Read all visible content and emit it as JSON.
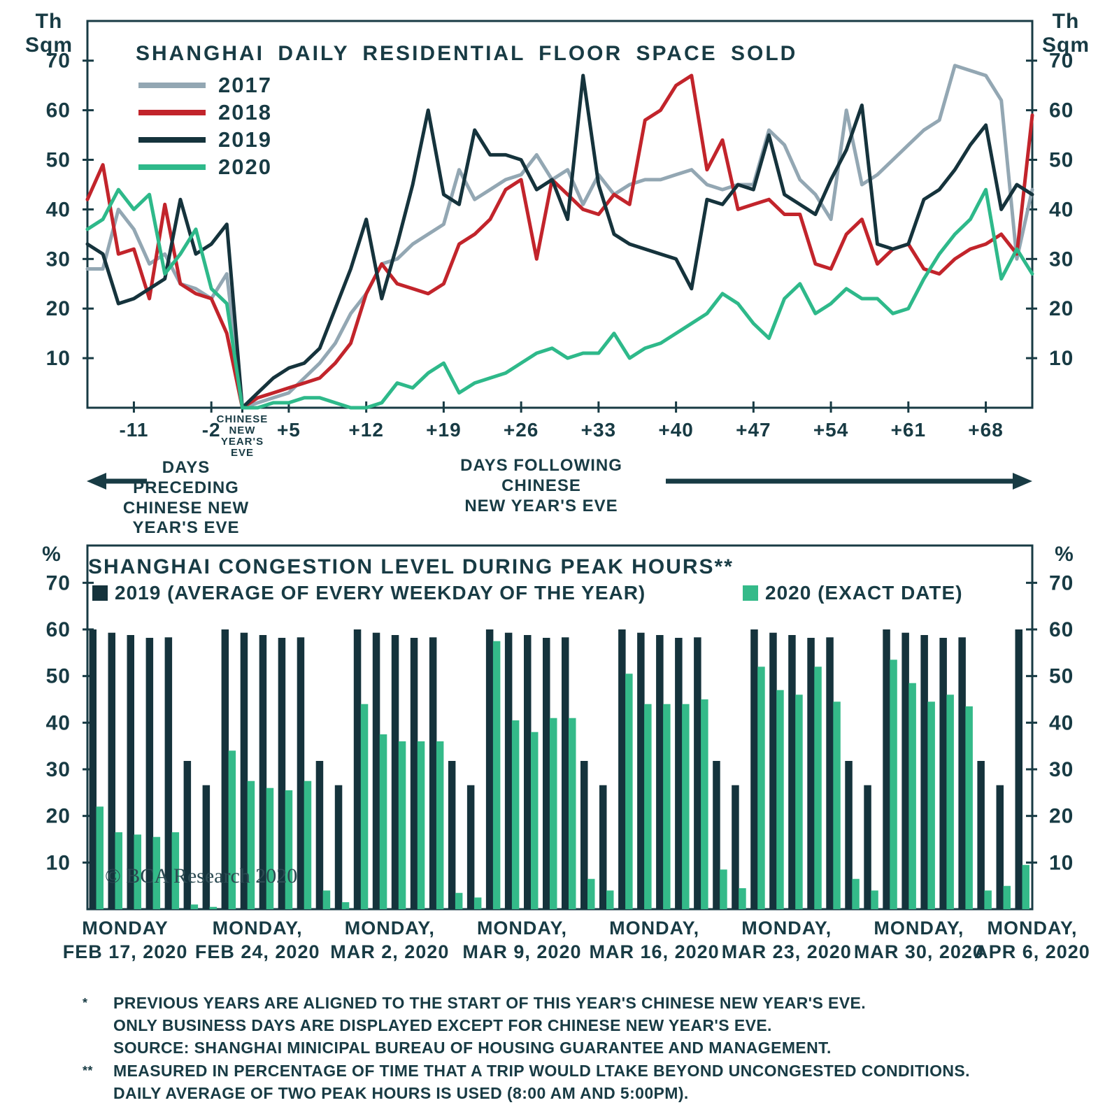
{
  "accent_colors": {
    "ink": "#183b44",
    "background": "#ffffff"
  },
  "top_chart": {
    "unit": "Th\nSqm",
    "preceding_label": "DAYS\nPRECEDING\nCHINESE NEW\nYEAR'S EVE",
    "following_label": "DAYS FOLLOWING\nCHINESE\nNEW YEAR'S EVE"
  },
  "bottom_chart": {
    "unit": "%",
    "copyright": "© BCA Research 2020"
  },
  "chart_data": [
    {
      "type": "line",
      "title": "SHANGHAI DAILY RESIDENTIAL FLOOR SPACE SOLD",
      "y_unit": "Th Sqm",
      "ylim": [
        0,
        78
      ],
      "yticks": [
        10,
        20,
        30,
        40,
        50,
        60,
        70
      ],
      "x_description": "Business days aligned to the start of this year's Chinese New Year's Eve",
      "xticks": [
        {
          "i": 3,
          "label": "-11"
        },
        {
          "i": 8,
          "label": "-2"
        },
        {
          "i": 10,
          "label": "CHINESE NEW YEAR'S EVE",
          "small": true
        },
        {
          "i": 13,
          "label": "+5"
        },
        {
          "i": 18,
          "label": "+12"
        },
        {
          "i": 23,
          "label": "+19"
        },
        {
          "i": 28,
          "label": "+26"
        },
        {
          "i": 33,
          "label": "+33"
        },
        {
          "i": 38,
          "label": "+40"
        },
        {
          "i": 43,
          "label": "+47"
        },
        {
          "i": 48,
          "label": "+54"
        },
        {
          "i": 53,
          "label": "+61"
        },
        {
          "i": 58,
          "label": "+68"
        }
      ],
      "series": [
        {
          "name": "2017",
          "color": "#93a7b3",
          "values": [
            28,
            28,
            40,
            36,
            29,
            31,
            25,
            24,
            22,
            27,
            0,
            1,
            2,
            3,
            6,
            9,
            13,
            19,
            23,
            29,
            30,
            33,
            35,
            37,
            48,
            42,
            44,
            46,
            47,
            51,
            46,
            48,
            41,
            47,
            43,
            45,
            46,
            46,
            47,
            48,
            45,
            44,
            45,
            45,
            56,
            53,
            46,
            43,
            38,
            60,
            45,
            47,
            50,
            53,
            56,
            58,
            69,
            68,
            67,
            62,
            30,
            44
          ]
        },
        {
          "name": "2018",
          "color": "#c2242b",
          "values": [
            42,
            49,
            31,
            32,
            22,
            41,
            25,
            23,
            22,
            15,
            0,
            2,
            3,
            4,
            5,
            6,
            9,
            13,
            23,
            29,
            25,
            24,
            23,
            25,
            33,
            35,
            38,
            44,
            46,
            30,
            46,
            43,
            40,
            39,
            43,
            41,
            58,
            60,
            65,
            67,
            48,
            54,
            40,
            41,
            42,
            39,
            39,
            29,
            28,
            35,
            38,
            29,
            32,
            33,
            28,
            27,
            30,
            32,
            33,
            35,
            31,
            59
          ]
        },
        {
          "name": "2019",
          "color": "#15333c",
          "values": [
            33,
            31,
            21,
            22,
            24,
            26,
            42,
            31,
            33,
            37,
            0,
            3,
            6,
            8,
            9,
            12,
            20,
            28,
            38,
            22,
            33,
            45,
            60,
            43,
            41,
            56,
            51,
            51,
            50,
            44,
            46,
            38,
            67,
            45,
            35,
            33,
            32,
            31,
            30,
            24,
            42,
            41,
            45,
            44,
            55,
            43,
            41,
            39,
            46,
            52,
            61,
            33,
            32,
            33,
            42,
            44,
            48,
            53,
            57,
            40,
            45,
            43
          ]
        },
        {
          "name": "2020",
          "color": "#2eb98a",
          "values": [
            36,
            38,
            44,
            40,
            43,
            27,
            31,
            36,
            24,
            21,
            0,
            0,
            1,
            1,
            2,
            2,
            1,
            0,
            0,
            1,
            5,
            4,
            7,
            9,
            3,
            5,
            6,
            7,
            9,
            11,
            12,
            10,
            11,
            11,
            15,
            10,
            12,
            13,
            15,
            17,
            19,
            23,
            21,
            17,
            14,
            22,
            25,
            19,
            21,
            24,
            22,
            22,
            19,
            20,
            26,
            31,
            35,
            38,
            44,
            26,
            32,
            27
          ]
        }
      ]
    },
    {
      "type": "bar",
      "title": "SHANGHAI CONGESTION LEVEL DURING PEAK HOURS**",
      "y_unit": "%",
      "ylim": [
        0,
        78
      ],
      "yticks": [
        10,
        20,
        30,
        40,
        50,
        60,
        70
      ],
      "group_size": 7,
      "series": [
        {
          "name": "2019 (AVERAGE OF EVERY WEEKDAY OF THE YEAR)",
          "color": "#15333c",
          "values": [
            60,
            59.3,
            58.8,
            58.2,
            58.3,
            31.8,
            26.6,
            60,
            59.3,
            58.8,
            58.2,
            58.3,
            31.8,
            26.6,
            60,
            59.3,
            58.8,
            58.2,
            58.3,
            31.8,
            26.6,
            60,
            59.3,
            58.8,
            58.2,
            58.3,
            31.8,
            26.6,
            60,
            59.3,
            58.8,
            58.2,
            58.3,
            31.8,
            26.6,
            60,
            59.3,
            58.8,
            58.2,
            58.3,
            31.8,
            26.6,
            60,
            59.3,
            58.8,
            58.2,
            58.3,
            31.8,
            26.6,
            60
          ]
        },
        {
          "name": "2020 (EXACT DATE)",
          "color": "#34ba89",
          "values": [
            22,
            16.5,
            16,
            15.5,
            16.5,
            1,
            0.5,
            34,
            27.5,
            26,
            25.5,
            27.5,
            4,
            1.5,
            44,
            37.5,
            36,
            36,
            36,
            3.5,
            2.5,
            57.5,
            40.5,
            38,
            41,
            41,
            6.5,
            4,
            50.5,
            44,
            44,
            44,
            45,
            8.5,
            4.5,
            52,
            47,
            46,
            52,
            44.5,
            6.5,
            4,
            53.5,
            48.5,
            44.5,
            46,
            43.5,
            4,
            5,
            9.5
          ]
        }
      ],
      "week_labels": [
        {
          "i": 0,
          "line1": "MONDAY",
          "line2": "FEB 17, 2020"
        },
        {
          "i": 7,
          "line1": "MONDAY,",
          "line2": "FEB 24, 2020"
        },
        {
          "i": 14,
          "line1": "MONDAY,",
          "line2": "MAR 2, 2020"
        },
        {
          "i": 21,
          "line1": "MONDAY,",
          "line2": "MAR 9, 2020"
        },
        {
          "i": 28,
          "line1": "MONDAY,",
          "line2": "MAR 16, 2020"
        },
        {
          "i": 35,
          "line1": "MONDAY,",
          "line2": "MAR 23, 2020"
        },
        {
          "i": 42,
          "line1": "MONDAY,",
          "line2": "MAR 30, 2020"
        },
        {
          "i": 49,
          "line1": "MONDAY,",
          "line2": "APR 6, 2020"
        }
      ]
    }
  ],
  "footnotes": {
    "items": [
      {
        "marker": "*",
        "text": "PREVIOUS YEARS ARE ALIGNED TO THE START OF THIS YEAR'S CHINESE NEW YEAR'S EVE."
      },
      {
        "marker": "",
        "text": "ONLY BUSINESS DAYS ARE DISPLAYED EXCEPT FOR CHINESE NEW YEAR'S EVE."
      },
      {
        "marker": "",
        "text": "SOURCE: SHANGHAI MINICIPAL BUREAU OF HOUSING GUARANTEE AND MANAGEMENT."
      },
      {
        "marker": "**",
        "text": "MEASURED IN PERCENTAGE OF TIME THAT A TRIP WOULD LTAKE BEYOND UNCONGESTED CONDITIONS."
      },
      {
        "marker": "",
        "text": "DAILY AVERAGE OF TWO PEAK HOURS IS USED (8:00 AM AND 5:00PM)."
      }
    ]
  }
}
